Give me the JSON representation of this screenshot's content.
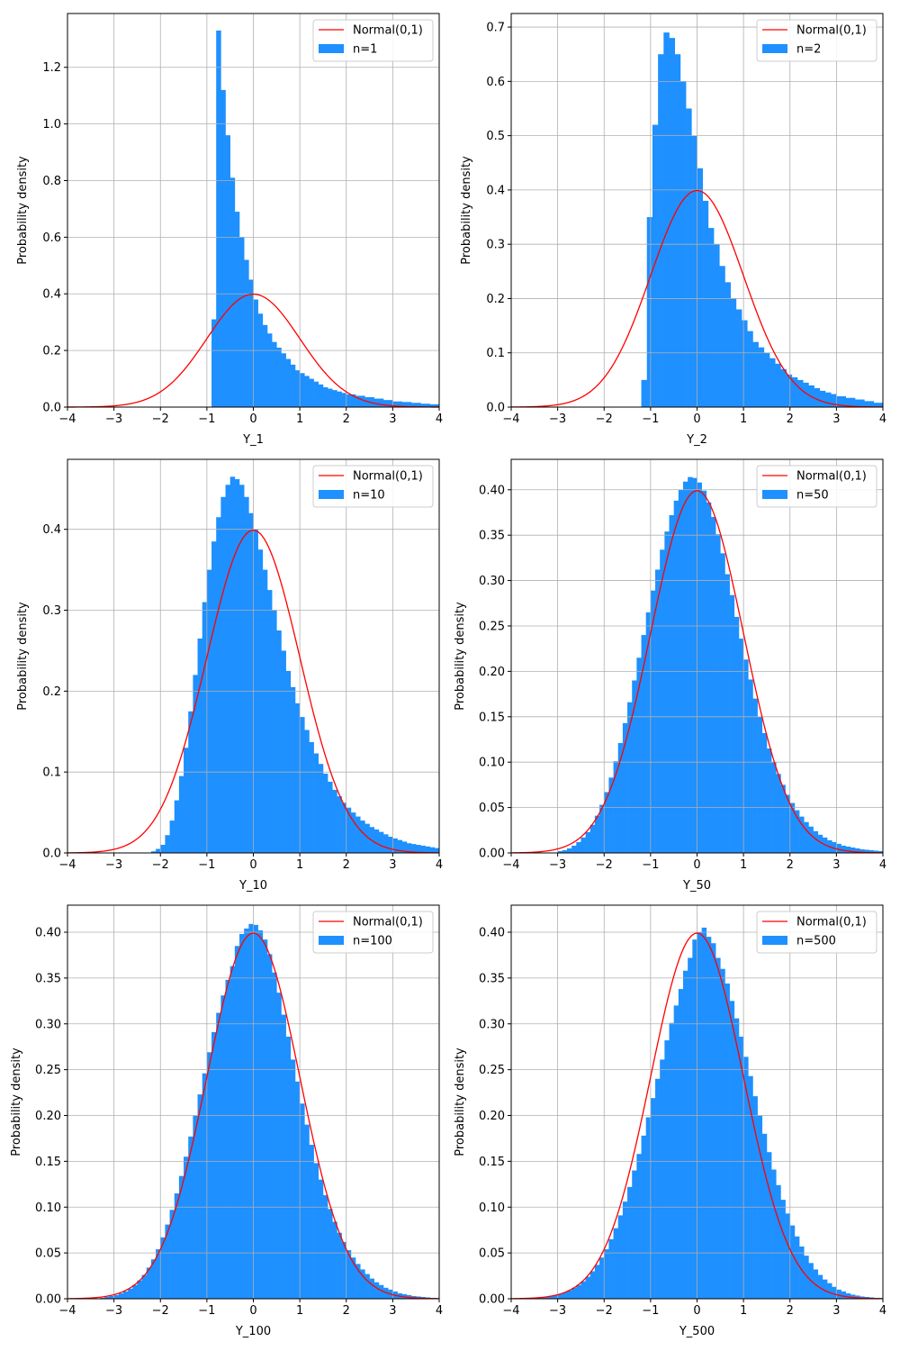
{
  "figure": {
    "title": "",
    "colors": {
      "histogram": "#1e90ff",
      "normal_curve": "#ff0000",
      "grid": "#b0b0b0"
    }
  },
  "chart_data": [
    {
      "type": "bar",
      "name": "n=1",
      "xlabel": "Y_1",
      "ylabel": "Probability density",
      "xlim": [
        -4,
        4
      ],
      "ylim": [
        0,
        1.39
      ],
      "xticks": [
        "−4",
        "−3",
        "−2",
        "−1",
        "0",
        "1",
        "2",
        "3",
        "4"
      ],
      "yticks": [
        0,
        0.2,
        0.4,
        0.6,
        0.8,
        1.0,
        1.2
      ],
      "ytick_labels": [
        "0.0",
        "0.2",
        "0.4",
        "0.6",
        "0.8",
        "1.0",
        "1.2"
      ],
      "legend": [
        "Normal(0,1)",
        "n=1"
      ],
      "bin_width": 0.1,
      "bins_x0": [
        -0.9,
        -0.8,
        -0.7,
        -0.6,
        -0.5,
        -0.4,
        -0.3,
        -0.2,
        -0.1,
        0.0,
        0.1,
        0.2,
        0.3,
        0.4,
        0.5,
        0.6,
        0.7,
        0.8,
        0.9,
        1.0,
        1.1,
        1.2,
        1.3,
        1.4,
        1.5,
        1.6,
        1.7,
        1.8,
        1.9,
        2.0,
        2.2,
        2.4,
        2.6,
        2.8,
        3.0,
        3.2,
        3.4,
        3.6,
        3.8
      ],
      "density": [
        0.31,
        1.33,
        1.12,
        0.96,
        0.81,
        0.69,
        0.6,
        0.52,
        0.45,
        0.38,
        0.33,
        0.29,
        0.26,
        0.23,
        0.21,
        0.19,
        0.17,
        0.15,
        0.13,
        0.12,
        0.11,
        0.1,
        0.09,
        0.08,
        0.07,
        0.065,
        0.06,
        0.055,
        0.05,
        0.045,
        0.04,
        0.035,
        0.03,
        0.025,
        0.02,
        0.018,
        0.015,
        0.012,
        0.01
      ],
      "bin_widths": [
        0.1,
        0.1,
        0.1,
        0.1,
        0.1,
        0.1,
        0.1,
        0.1,
        0.1,
        0.1,
        0.1,
        0.1,
        0.1,
        0.1,
        0.1,
        0.1,
        0.1,
        0.1,
        0.1,
        0.1,
        0.1,
        0.1,
        0.1,
        0.1,
        0.1,
        0.1,
        0.1,
        0.1,
        0.1,
        0.2,
        0.2,
        0.2,
        0.2,
        0.2,
        0.2,
        0.2,
        0.2,
        0.2,
        0.2
      ]
    },
    {
      "type": "bar",
      "name": "n=2",
      "xlabel": "Y_2",
      "ylabel": "Probability density",
      "xlim": [
        -4,
        4
      ],
      "ylim": [
        0,
        0.725
      ],
      "xticks": [
        "−4",
        "−3",
        "−2",
        "−1",
        "0",
        "1",
        "2",
        "3",
        "4"
      ],
      "yticks": [
        0,
        0.1,
        0.2,
        0.3,
        0.4,
        0.5,
        0.6,
        0.7
      ],
      "ytick_labels": [
        "0.0",
        "0.1",
        "0.2",
        "0.3",
        "0.4",
        "0.5",
        "0.6",
        "0.7"
      ],
      "legend": [
        "Normal(0,1)",
        "n=2"
      ],
      "bin_width": 0.12,
      "bins_x0": [
        -1.2,
        -1.08,
        -0.96,
        -0.84,
        -0.72,
        -0.6,
        -0.48,
        -0.36,
        -0.24,
        -0.12,
        0.0,
        0.12,
        0.24,
        0.36,
        0.48,
        0.6,
        0.72,
        0.84,
        0.96,
        1.08,
        1.2,
        1.32,
        1.44,
        1.56,
        1.68,
        1.8,
        1.92,
        2.04,
        2.16,
        2.28,
        2.4,
        2.52,
        2.64,
        2.76,
        2.88,
        3.0,
        3.2,
        3.4,
        3.6,
        3.8
      ],
      "density": [
        0.05,
        0.35,
        0.52,
        0.65,
        0.69,
        0.68,
        0.65,
        0.6,
        0.55,
        0.5,
        0.44,
        0.38,
        0.33,
        0.3,
        0.26,
        0.23,
        0.2,
        0.18,
        0.16,
        0.14,
        0.12,
        0.11,
        0.1,
        0.09,
        0.08,
        0.07,
        0.06,
        0.055,
        0.05,
        0.045,
        0.04,
        0.035,
        0.03,
        0.027,
        0.024,
        0.02,
        0.017,
        0.014,
        0.011,
        0.008
      ],
      "bin_widths": [
        0.12,
        0.12,
        0.12,
        0.12,
        0.12,
        0.12,
        0.12,
        0.12,
        0.12,
        0.12,
        0.12,
        0.12,
        0.12,
        0.12,
        0.12,
        0.12,
        0.12,
        0.12,
        0.12,
        0.12,
        0.12,
        0.12,
        0.12,
        0.12,
        0.12,
        0.12,
        0.12,
        0.12,
        0.12,
        0.12,
        0.12,
        0.12,
        0.12,
        0.12,
        0.12,
        0.2,
        0.2,
        0.2,
        0.2,
        0.2
      ]
    },
    {
      "type": "bar",
      "name": "n=10",
      "xlabel": "Y_10",
      "ylabel": "Probability density",
      "xlim": [
        -4,
        4
      ],
      "ylim": [
        0,
        0.4865
      ],
      "xticks": [
        "−4",
        "−3",
        "−2",
        "−1",
        "0",
        "1",
        "2",
        "3",
        "4"
      ],
      "yticks": [
        0,
        0.1,
        0.2,
        0.3,
        0.4
      ],
      "ytick_labels": [
        "0.0",
        "0.1",
        "0.2",
        "0.3",
        "0.4"
      ],
      "legend": [
        "Normal(0,1)",
        "n=10"
      ],
      "bin_width": 0.1,
      "bins_x0": [
        -2.2,
        -2.1,
        -2.0,
        -1.9,
        -1.8,
        -1.7,
        -1.6,
        -1.5,
        -1.4,
        -1.3,
        -1.2,
        -1.1,
        -1.0,
        -0.9,
        -0.8,
        -0.7,
        -0.6,
        -0.5,
        -0.4,
        -0.3,
        -0.2,
        -0.1,
        0.0,
        0.1,
        0.2,
        0.3,
        0.4,
        0.5,
        0.6,
        0.7,
        0.8,
        0.9,
        1.0,
        1.1,
        1.2,
        1.3,
        1.4,
        1.5,
        1.6,
        1.7,
        1.8,
        1.9,
        2.0,
        2.1,
        2.2,
        2.3,
        2.4,
        2.5,
        2.6,
        2.7,
        2.8,
        2.9,
        3.0,
        3.1,
        3.2,
        3.3,
        3.4,
        3.5,
        3.6,
        3.7,
        3.8,
        3.9
      ],
      "density": [
        0.002,
        0.005,
        0.01,
        0.022,
        0.04,
        0.065,
        0.095,
        0.13,
        0.175,
        0.22,
        0.265,
        0.31,
        0.35,
        0.385,
        0.415,
        0.44,
        0.455,
        0.465,
        0.462,
        0.455,
        0.44,
        0.42,
        0.4,
        0.375,
        0.35,
        0.325,
        0.3,
        0.275,
        0.25,
        0.225,
        0.205,
        0.185,
        0.168,
        0.152,
        0.137,
        0.123,
        0.11,
        0.098,
        0.088,
        0.078,
        0.07,
        0.062,
        0.056,
        0.05,
        0.045,
        0.04,
        0.036,
        0.032,
        0.029,
        0.026,
        0.023,
        0.02,
        0.018,
        0.016,
        0.014,
        0.012,
        0.011,
        0.01,
        0.009,
        0.008,
        0.007,
        0.006
      ],
      "bin_widths": null
    },
    {
      "type": "bar",
      "name": "n=50",
      "xlabel": "Y_50",
      "ylabel": "Probability density",
      "xlim": [
        -4,
        4
      ],
      "ylim": [
        0,
        0.4335
      ],
      "xticks": [
        "−4",
        "−3",
        "−2",
        "−1",
        "0",
        "1",
        "2",
        "3",
        "4"
      ],
      "yticks": [
        0,
        0.05,
        0.1,
        0.15,
        0.2,
        0.25,
        0.3,
        0.35,
        0.4
      ],
      "ytick_labels": [
        "0.00",
        "0.05",
        "0.10",
        "0.15",
        "0.20",
        "0.25",
        "0.30",
        "0.35",
        "0.40"
      ],
      "legend": [
        "Normal(0,1)",
        "n=50"
      ],
      "bin_width": 0.1,
      "bins_x0": [
        -3.0,
        -2.9,
        -2.8,
        -2.7,
        -2.6,
        -2.5,
        -2.4,
        -2.3,
        -2.2,
        -2.1,
        -2.0,
        -1.9,
        -1.8,
        -1.7,
        -1.6,
        -1.5,
        -1.4,
        -1.3,
        -1.2,
        -1.1,
        -1.0,
        -0.9,
        -0.8,
        -0.7,
        -0.6,
        -0.5,
        -0.4,
        -0.3,
        -0.2,
        -0.1,
        0.0,
        0.1,
        0.2,
        0.3,
        0.4,
        0.5,
        0.6,
        0.7,
        0.8,
        0.9,
        1.0,
        1.1,
        1.2,
        1.3,
        1.4,
        1.5,
        1.6,
        1.7,
        1.8,
        1.9,
        2.0,
        2.1,
        2.2,
        2.3,
        2.4,
        2.5,
        2.6,
        2.7,
        2.8,
        2.9,
        3.0,
        3.1,
        3.2,
        3.3,
        3.4,
        3.5,
        3.6,
        3.7,
        3.8,
        3.9
      ],
      "density": [
        0.002,
        0.003,
        0.005,
        0.008,
        0.012,
        0.017,
        0.023,
        0.031,
        0.041,
        0.053,
        0.067,
        0.083,
        0.101,
        0.121,
        0.143,
        0.166,
        0.19,
        0.215,
        0.24,
        0.265,
        0.289,
        0.312,
        0.334,
        0.354,
        0.372,
        0.388,
        0.4,
        0.409,
        0.414,
        0.413,
        0.408,
        0.399,
        0.386,
        0.37,
        0.351,
        0.33,
        0.307,
        0.284,
        0.26,
        0.236,
        0.213,
        0.191,
        0.17,
        0.15,
        0.132,
        0.115,
        0.1,
        0.087,
        0.075,
        0.064,
        0.055,
        0.047,
        0.04,
        0.034,
        0.029,
        0.024,
        0.02,
        0.017,
        0.014,
        0.012,
        0.01,
        0.008,
        0.007,
        0.006,
        0.005,
        0.004,
        0.0035,
        0.003,
        0.0025,
        0.002
      ],
      "bin_widths": null
    },
    {
      "type": "bar",
      "name": "n=100",
      "xlabel": "Y_100",
      "ylabel": "Probability density",
      "xlim": [
        -4,
        4
      ],
      "ylim": [
        0,
        0.4295
      ],
      "xticks": [
        "−4",
        "−3",
        "−2",
        "−1",
        "0",
        "1",
        "2",
        "3",
        "4"
      ],
      "yticks": [
        0,
        0.05,
        0.1,
        0.15,
        0.2,
        0.25,
        0.3,
        0.35,
        0.4
      ],
      "ytick_labels": [
        "0.00",
        "0.05",
        "0.10",
        "0.15",
        "0.20",
        "0.25",
        "0.30",
        "0.35",
        "0.40"
      ],
      "legend": [
        "Normal(0,1)",
        "n=100"
      ],
      "bin_width": 0.1,
      "bins_x0": [
        -3.3,
        -3.2,
        -3.1,
        -3.0,
        -2.9,
        -2.8,
        -2.7,
        -2.6,
        -2.5,
        -2.4,
        -2.3,
        -2.2,
        -2.1,
        -2.0,
        -1.9,
        -1.8,
        -1.7,
        -1.6,
        -1.5,
        -1.4,
        -1.3,
        -1.2,
        -1.1,
        -1.0,
        -0.9,
        -0.8,
        -0.7,
        -0.6,
        -0.5,
        -0.4,
        -0.3,
        -0.2,
        -0.1,
        0.0,
        0.1,
        0.2,
        0.3,
        0.4,
        0.5,
        0.6,
        0.7,
        0.8,
        0.9,
        1.0,
        1.1,
        1.2,
        1.3,
        1.4,
        1.5,
        1.6,
        1.7,
        1.8,
        1.9,
        2.0,
        2.1,
        2.2,
        2.3,
        2.4,
        2.5,
        2.6,
        2.7,
        2.8,
        2.9,
        3.0,
        3.1,
        3.2,
        3.3,
        3.4,
        3.5,
        3.6,
        3.7,
        3.8,
        3.9
      ],
      "density": [
        0.001,
        0.002,
        0.003,
        0.004,
        0.006,
        0.008,
        0.011,
        0.015,
        0.02,
        0.026,
        0.034,
        0.043,
        0.054,
        0.067,
        0.081,
        0.097,
        0.115,
        0.134,
        0.155,
        0.177,
        0.2,
        0.223,
        0.246,
        0.269,
        0.291,
        0.312,
        0.331,
        0.348,
        0.363,
        0.385,
        0.398,
        0.404,
        0.409,
        0.408,
        0.402,
        0.392,
        0.376,
        0.356,
        0.334,
        0.31,
        0.286,
        0.261,
        0.237,
        0.213,
        0.19,
        0.168,
        0.148,
        0.13,
        0.113,
        0.098,
        0.084,
        0.072,
        0.062,
        0.053,
        0.045,
        0.038,
        0.032,
        0.027,
        0.022,
        0.018,
        0.015,
        0.012,
        0.01,
        0.008,
        0.006,
        0.005,
        0.004,
        0.003,
        0.0025,
        0.002,
        0.0015,
        0.001,
        0.0008
      ],
      "bin_widths": null
    },
    {
      "type": "bar",
      "name": "n=500",
      "xlabel": "Y_500",
      "ylabel": "Probability density",
      "xlim": [
        -4,
        4
      ],
      "ylim": [
        0,
        0.4295
      ],
      "xticks": [
        "−4",
        "−3",
        "−2",
        "−1",
        "0",
        "1",
        "2",
        "3",
        "4"
      ],
      "yticks": [
        0,
        0.05,
        0.1,
        0.15,
        0.2,
        0.25,
        0.3,
        0.35,
        0.4
      ],
      "ytick_labels": [
        "0.00",
        "0.05",
        "0.10",
        "0.15",
        "0.20",
        "0.25",
        "0.30",
        "0.35",
        "0.40"
      ],
      "legend": [
        "Normal(0,1)",
        "n=500"
      ],
      "bin_width": 0.1,
      "bins_x0": [
        -3.5,
        -3.4,
        -3.3,
        -3.2,
        -3.1,
        -3.0,
        -2.9,
        -2.8,
        -2.7,
        -2.6,
        -2.5,
        -2.4,
        -2.3,
        -2.2,
        -2.1,
        -2.0,
        -1.9,
        -1.8,
        -1.7,
        -1.6,
        -1.5,
        -1.4,
        -1.3,
        -1.2,
        -1.1,
        -1.0,
        -0.9,
        -0.8,
        -0.7,
        -0.6,
        -0.5,
        -0.4,
        -0.3,
        -0.2,
        -0.1,
        0.0,
        0.1,
        0.2,
        0.3,
        0.4,
        0.5,
        0.6,
        0.7,
        0.8,
        0.9,
        1.0,
        1.1,
        1.2,
        1.3,
        1.4,
        1.5,
        1.6,
        1.7,
        1.8,
        1.9,
        2.0,
        2.1,
        2.2,
        2.3,
        2.4,
        2.5,
        2.6,
        2.7,
        2.8,
        2.9,
        3.0,
        3.1,
        3.2,
        3.3,
        3.4,
        3.5,
        3.6,
        3.7,
        3.8,
        3.9
      ],
      "density": [
        0.001,
        0.0015,
        0.002,
        0.003,
        0.004,
        0.005,
        0.007,
        0.009,
        0.012,
        0.015,
        0.019,
        0.024,
        0.03,
        0.037,
        0.045,
        0.054,
        0.065,
        0.077,
        0.091,
        0.106,
        0.122,
        0.14,
        0.158,
        0.178,
        0.198,
        0.219,
        0.24,
        0.261,
        0.282,
        0.301,
        0.32,
        0.338,
        0.358,
        0.372,
        0.392,
        0.4,
        0.405,
        0.395,
        0.388,
        0.372,
        0.36,
        0.344,
        0.325,
        0.306,
        0.286,
        0.264,
        0.243,
        0.221,
        0.2,
        0.18,
        0.16,
        0.141,
        0.124,
        0.108,
        0.093,
        0.08,
        0.068,
        0.057,
        0.047,
        0.039,
        0.032,
        0.026,
        0.021,
        0.017,
        0.013,
        0.01,
        0.008,
        0.006,
        0.0045,
        0.0035,
        0.0025,
        0.002,
        0.0015,
        0.001,
        0.0008
      ],
      "bin_widths": null
    }
  ]
}
